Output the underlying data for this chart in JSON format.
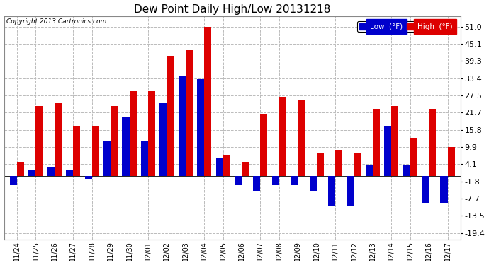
{
  "title": "Dew Point Daily High/Low 20131218",
  "copyright": "Copyright 2013 Cartronics.com",
  "legend_low": "Low  (°F)",
  "legend_high": "High  (°F)",
  "low_color": "#0000cc",
  "high_color": "#dd0000",
  "bg_color": "#ffffff",
  "grid_color": "#bbbbbb",
  "yticks": [
    -19.4,
    -13.5,
    -7.7,
    -1.8,
    4.1,
    9.9,
    15.8,
    21.7,
    27.5,
    33.4,
    39.3,
    45.1,
    51.0
  ],
  "dates": [
    "11/24",
    "11/25",
    "11/26",
    "11/27",
    "11/28",
    "11/29",
    "11/30",
    "12/01",
    "12/02",
    "12/03",
    "12/04",
    "12/05",
    "12/06",
    "12/07",
    "12/08",
    "12/09",
    "12/10",
    "12/11",
    "12/12",
    "12/13",
    "12/14",
    "12/15",
    "12/16",
    "12/17"
  ],
  "high_values": [
    5.0,
    24.0,
    25.0,
    17.0,
    17.0,
    24.0,
    29.0,
    29.0,
    41.0,
    43.0,
    51.0,
    7.0,
    5.0,
    21.0,
    27.0,
    26.0,
    8.0,
    9.0,
    8.0,
    23.0,
    24.0,
    13.0,
    23.0,
    10.0
  ],
  "low_values": [
    -3.0,
    2.0,
    3.0,
    2.0,
    -1.0,
    12.0,
    20.0,
    12.0,
    25.0,
    34.0,
    33.0,
    6.0,
    -3.0,
    -5.0,
    -3.0,
    -3.0,
    -5.0,
    -10.0,
    -10.0,
    4.0,
    17.0,
    4.0,
    -9.0,
    -9.0
  ],
  "ylim": [
    -21.5,
    54.5
  ],
  "bar_width": 0.38,
  "figsize": [
    6.9,
    3.75
  ],
  "dpi": 100
}
